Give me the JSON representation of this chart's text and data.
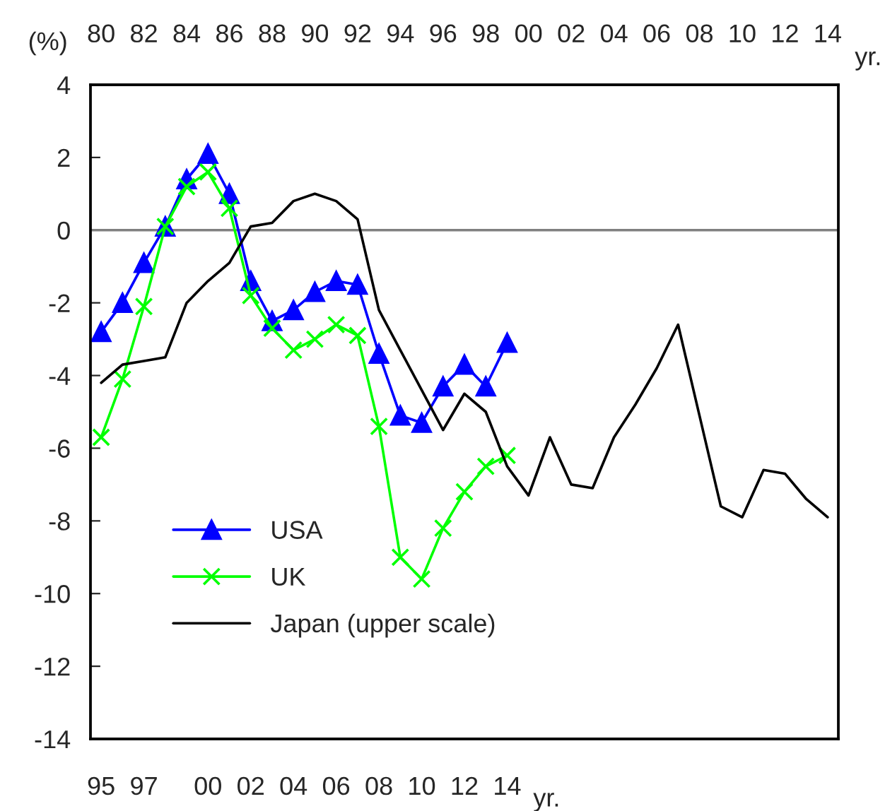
{
  "chart_data": {
    "type": "line",
    "ylabel": "(%)",
    "xlabel": "yr.",
    "x2label": "yr.",
    "xlim": [
      1994.5,
      2029.5
    ],
    "x2lim": [
      1979.5,
      2014.5
    ],
    "ylim": [
      -14,
      4
    ],
    "yticks": [
      -14,
      -12,
      -10,
      -8,
      -6,
      -4,
      -2,
      0,
      2,
      4
    ],
    "xticks": [
      {
        "value": 1995,
        "label": "95"
      },
      {
        "value": 1997,
        "label": "97"
      },
      {
        "value": 2000,
        "label": "00"
      },
      {
        "value": 2002,
        "label": "02"
      },
      {
        "value": 2004,
        "label": "04"
      },
      {
        "value": 2006,
        "label": "06"
      },
      {
        "value": 2008,
        "label": "08"
      },
      {
        "value": 2010,
        "label": "10"
      },
      {
        "value": 2012,
        "label": "12"
      },
      {
        "value": 2014,
        "label": "14"
      }
    ],
    "x2ticks": [
      {
        "value": 1980,
        "label": "80"
      },
      {
        "value": 1982,
        "label": "82"
      },
      {
        "value": 1984,
        "label": "84"
      },
      {
        "value": 1986,
        "label": "86"
      },
      {
        "value": 1988,
        "label": "88"
      },
      {
        "value": 1990,
        "label": "90"
      },
      {
        "value": 1992,
        "label": "92"
      },
      {
        "value": 1994,
        "label": "94"
      },
      {
        "value": 1996,
        "label": "96"
      },
      {
        "value": 1998,
        "label": "98"
      },
      {
        "value": 2000,
        "label": "00"
      },
      {
        "value": 2002,
        "label": "02"
      },
      {
        "value": 2004,
        "label": "04"
      },
      {
        "value": 2006,
        "label": "06"
      },
      {
        "value": 2008,
        "label": "08"
      },
      {
        "value": 2010,
        "label": "10"
      },
      {
        "value": 2012,
        "label": "12"
      },
      {
        "value": 2014,
        "label": "14"
      }
    ],
    "ref_lines": [
      {
        "axis": "y",
        "value": 0,
        "color": "#808080",
        "line_style": "solid"
      }
    ],
    "legend": "bottom left",
    "grid": false,
    "series": [
      {
        "name": "USA",
        "type": "line",
        "color": "#0000ff",
        "marker": "triangle",
        "x": [
          1995,
          1996,
          1997,
          1998,
          1999,
          2000,
          2001,
          2002,
          2003,
          2004,
          2005,
          2006,
          2007,
          2008,
          2009,
          2010,
          2011,
          2012,
          2013,
          2014
        ],
        "values": [
          -2.8,
          -2.0,
          -0.9,
          0.1,
          1.4,
          2.1,
          1.0,
          -1.4,
          -2.5,
          -2.2,
          -1.7,
          -1.4,
          -1.5,
          -3.4,
          -5.1,
          -5.3,
          -4.3,
          -3.7,
          -4.3,
          -3.1
        ]
      },
      {
        "name": "UK",
        "type": "line",
        "color": "#00ff00",
        "marker": "cross",
        "x": [
          1995,
          1996,
          1997,
          1998,
          1999,
          2000,
          2001,
          2002,
          2003,
          2004,
          2005,
          2006,
          2007,
          2008,
          2009,
          2010,
          2011,
          2012,
          2013,
          2014
        ],
        "values": [
          -5.7,
          -4.1,
          -2.1,
          0.1,
          1.2,
          1.6,
          0.6,
          -1.8,
          -2.7,
          -3.3,
          -3.0,
          -2.6,
          -2.9,
          -5.4,
          -9.0,
          -9.6,
          -8.2,
          -7.2,
          -6.5,
          -6.2
        ]
      },
      {
        "name": "Japan (upper scale)",
        "type": "line",
        "color": "#000000",
        "marker": "none",
        "axis": "x2",
        "x": [
          1980,
          1981,
          1982,
          1983,
          1984,
          1985,
          1986,
          1987,
          1988,
          1989,
          1990,
          1991,
          1992,
          1993,
          1994,
          1995,
          1996,
          1997,
          1998,
          1999,
          2000,
          2001,
          2002,
          2003,
          2004,
          2005,
          2006,
          2007,
          2008,
          2009,
          2010,
          2011,
          2012,
          2013,
          2014
        ],
        "values": [
          -4.2,
          -3.7,
          -3.6,
          -3.5,
          -2.0,
          -1.4,
          -0.9,
          0.1,
          0.2,
          0.8,
          1.0,
          0.8,
          0.3,
          -2.2,
          -3.3,
          -4.4,
          -5.5,
          -4.5,
          -5.0,
          -6.5,
          -7.3,
          -5.7,
          -7.0,
          -7.1,
          -5.7,
          -4.8,
          -3.8,
          -2.6,
          -5.1,
          -7.6,
          -7.9,
          -6.6,
          -6.7,
          -7.4,
          -7.9
        ]
      }
    ]
  }
}
